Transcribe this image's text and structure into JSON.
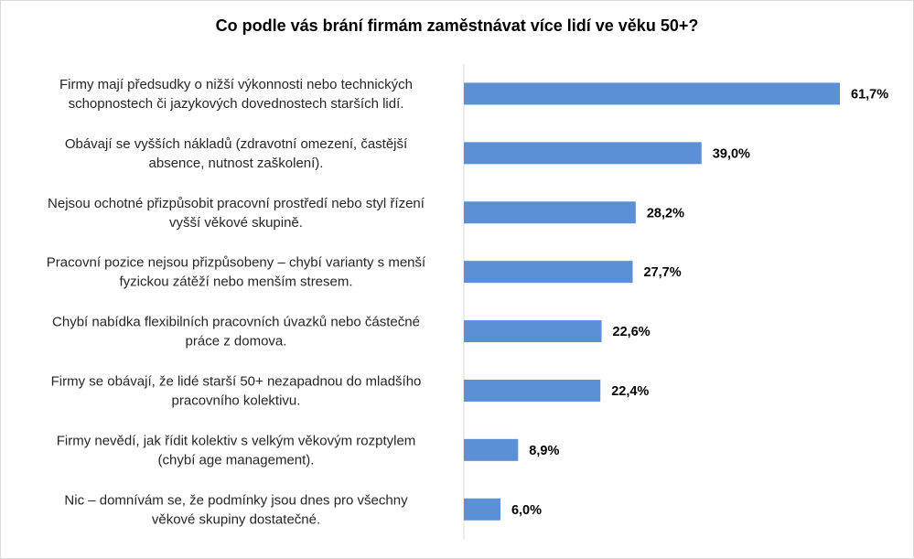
{
  "chart_data": {
    "type": "bar",
    "orientation": "horizontal",
    "title": "Co podle vás brání firmám zaměstnávat více lidí ve věku 50+?",
    "categories": [
      [
        "Firmy mají předsudky o nižší výkonnosti nebo technických",
        "schopnostech či jazykových dovednostech starších lidí."
      ],
      [
        "Obávají se vyšších nákladů (zdravotní omezení, častější",
        "absence, nutnost zaškolení)."
      ],
      [
        "Nejsou ochotné přizpůsobit pracovní prostředí nebo styl řízení",
        "vyšší věkové skupině."
      ],
      [
        "Pracovní pozice nejsou přizpůsobeny – chybí varianty s menší",
        "fyzickou zátěží nebo menším stresem."
      ],
      [
        "Chybí nabídka flexibilních pracovních úvazků nebo částečné",
        "práce z domova."
      ],
      [
        "Firmy se obávají, že lidé starší 50+ nezapadnou do mladšího",
        "pracovního kolektivu."
      ],
      [
        "Firmy nevědí, jak řídit kolektiv s velkým věkovým rozptylem",
        "(chybí age management)."
      ],
      [
        "Nic – domnívám se, že podmínky jsou dnes pro všechny",
        "věkové skupiny dostatečné."
      ]
    ],
    "values": [
      61.7,
      39.0,
      28.2,
      27.7,
      22.6,
      22.4,
      8.9,
      6.0
    ],
    "value_labels": [
      "61,7%",
      "39,0%",
      "28,2%",
      "27,7%",
      "22,6%",
      "22,4%",
      "8,9%",
      "6,0%"
    ],
    "xlim": [
      0,
      61.7
    ],
    "bar_color": "#5b8fd6",
    "axis_color": "#d9d9d9",
    "grid": false,
    "legend": "none"
  }
}
